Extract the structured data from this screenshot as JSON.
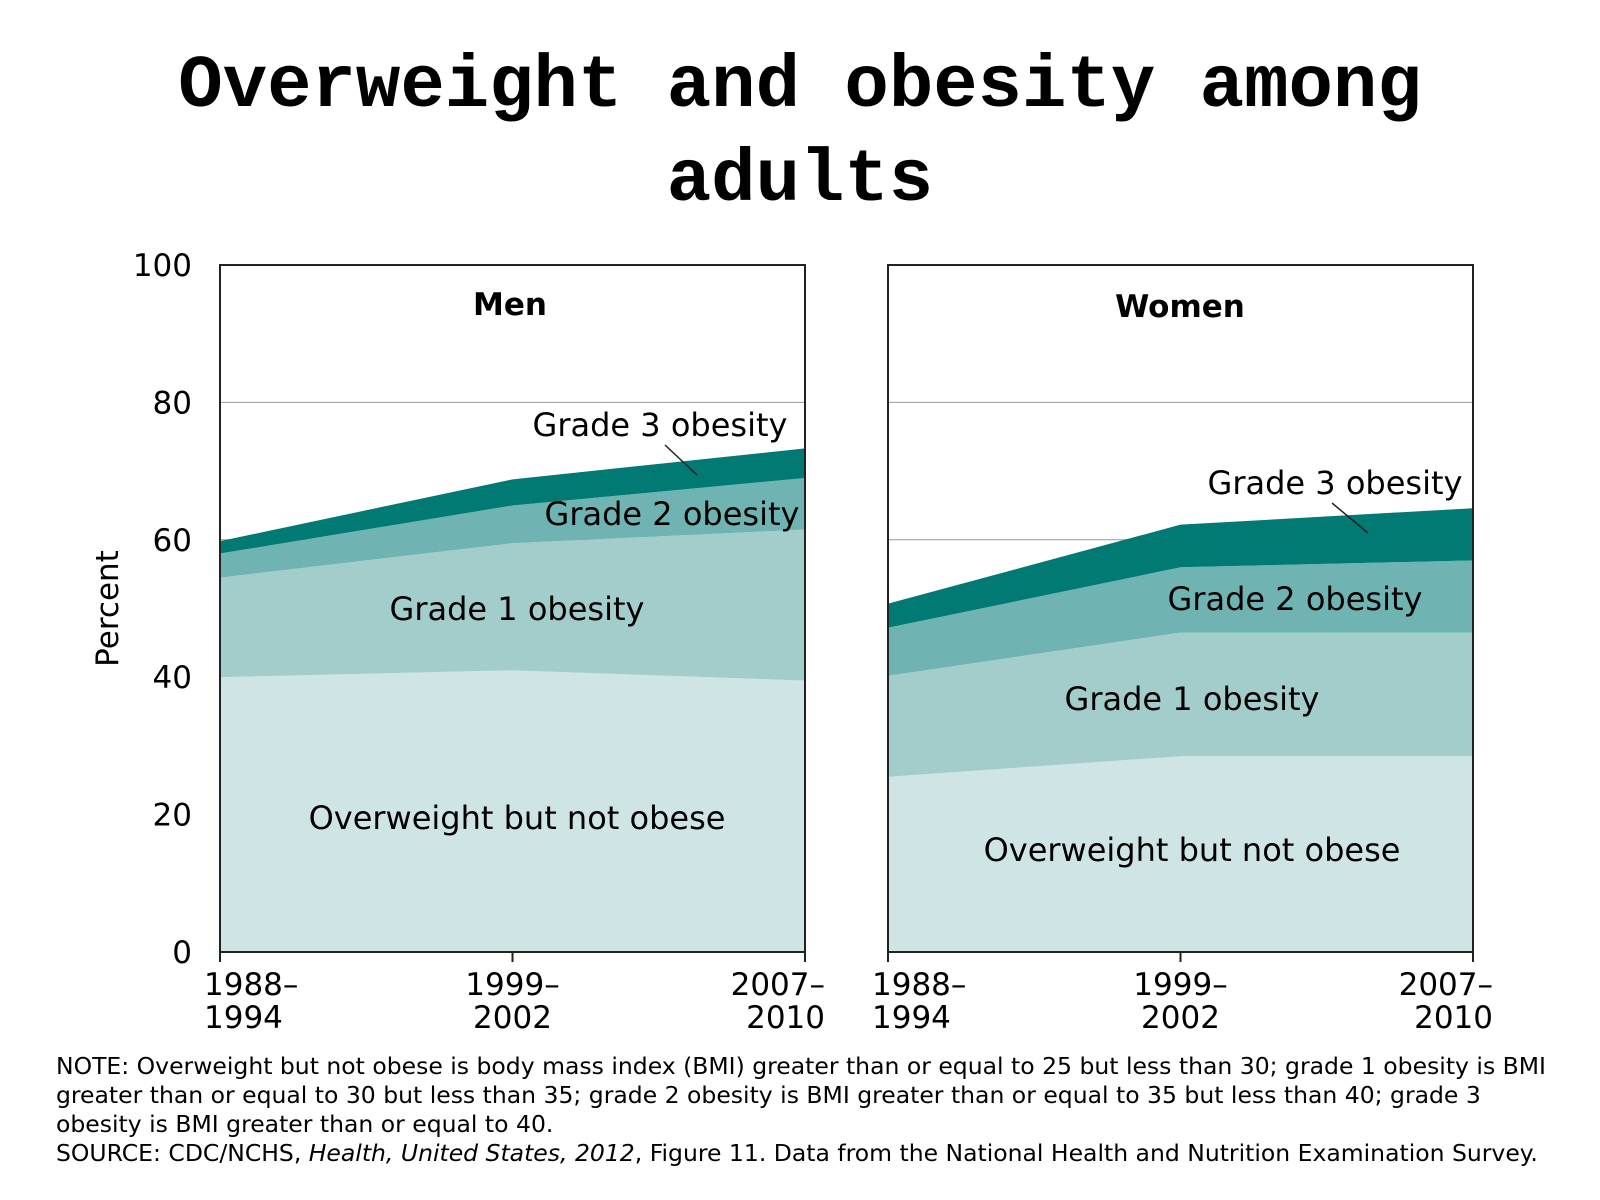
{
  "title_line1": "Overweight and obesity among",
  "title_line2": "adults",
  "chart_data": [
    {
      "type": "area",
      "stacked": true,
      "title": "Men",
      "ylabel": "Percent",
      "ylim": [
        0,
        100
      ],
      "yticks": [
        "0",
        "20",
        "40",
        "60",
        "80",
        "100"
      ],
      "categories": [
        "1988–\n1994",
        "1999–\n2002",
        "2007–\n2010"
      ],
      "series": [
        {
          "name": "Overweight but not obese",
          "values": [
            40,
            41,
            39.5
          ],
          "color": "#cfe5e5"
        },
        {
          "name": "Grade 1 obesity",
          "values": [
            14.5,
            18.5,
            22
          ],
          "color": "#a3cdcb"
        },
        {
          "name": "Grade 2 obesity",
          "values": [
            3.5,
            5.5,
            7.5
          ],
          "color": "#6fb3b2"
        },
        {
          "name": "Grade 3 obesity",
          "values": [
            1.8,
            3.8,
            4.3
          ],
          "color": "#007a73"
        }
      ],
      "gridlines": [
        60,
        80
      ]
    },
    {
      "type": "area",
      "stacked": true,
      "title": "Women",
      "ylim": [
        0,
        100
      ],
      "categories": [
        "1988–\n1994",
        "1999–\n2002",
        "2007–\n2010"
      ],
      "series": [
        {
          "name": "Overweight but not obese",
          "values": [
            25.5,
            28.5,
            28.5
          ],
          "color": "#cfe5e5"
        },
        {
          "name": "Grade 1 obesity",
          "values": [
            14.7,
            18,
            18
          ],
          "color": "#a3cdcb"
        },
        {
          "name": "Grade 2 obesity",
          "values": [
            7,
            9.5,
            10.5
          ],
          "color": "#6fb3b2"
        },
        {
          "name": "Grade 3 obesity",
          "values": [
            3.5,
            6.2,
            7.6
          ],
          "color": "#007a73"
        }
      ],
      "gridlines": [
        60,
        80
      ]
    }
  ],
  "notes": {
    "note": "NOTE: Overweight but not obese is body mass index (BMI) greater than or equal to 25 but less than 30; grade 1 obesity is BMI greater than or equal to 30 but less than 35; grade 2 obesity is BMI greater than or equal to 35 but less than 40; grade 3 obesity is BMI greater than or equal to 40.",
    "source_prefix": "SOURCE: CDC/NCHS, ",
    "source_italic": "Health, United States, 2012",
    "source_suffix": ", Figure 11. Data from the National Health and Nutrition Examination Survey."
  }
}
